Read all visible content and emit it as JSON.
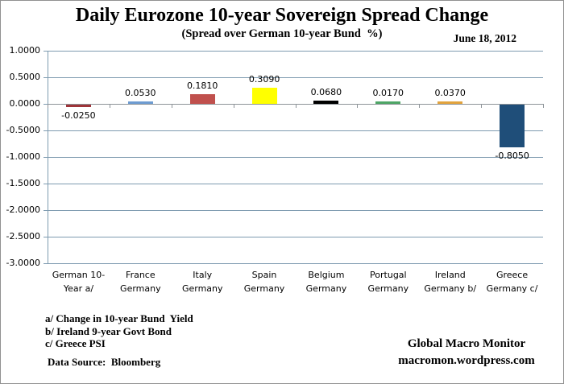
{
  "header": {
    "title": "Daily Eurozone 10-year Sovereign Spread Change",
    "subtitle": "(Spread over German 10-year Bund  %)",
    "date": "June 18, 2012"
  },
  "chart_data": {
    "type": "bar",
    "title": "Daily Eurozone 10-year Sovereign Spread Change",
    "subtitle": "(Spread over German 10-year Bund  %)",
    "annotation_date": "June 18, 2012",
    "categories": [
      "German 10-Year a/",
      "France Germany",
      "Italy Germany",
      "Spain Germany",
      "Belgium Germany",
      "Portugal Germany",
      "Ireland Germany b/",
      "Greece Germany c/"
    ],
    "category_label_lines": [
      [
        "German 10-",
        "Year a/"
      ],
      [
        "France",
        "Germany"
      ],
      [
        "Italy",
        "Germany"
      ],
      [
        "Spain",
        "Germany"
      ],
      [
        "Belgium",
        "Germany"
      ],
      [
        "Portugal",
        "Germany"
      ],
      [
        "Ireland",
        "Germany b/"
      ],
      [
        "Greece",
        "Germany c/"
      ]
    ],
    "values": [
      -0.025,
      0.053,
      0.181,
      0.309,
      0.068,
      0.017,
      0.037,
      -0.805
    ],
    "value_labels": [
      "-0.0250",
      "0.0530",
      "0.1810",
      "0.3090",
      "0.0680",
      "0.0170",
      "0.0370",
      "-0.8050"
    ],
    "bar_colors": [
      "#9E3439",
      "#6D9BD1",
      "#C0504D",
      "#FFFF00",
      "#000000",
      "#4EA566",
      "#E2A33D",
      "#1F4E79"
    ],
    "ylim": [
      -3.0,
      1.0
    ],
    "ytick_labels": [
      "1.0000",
      "0.5000",
      "0.0000",
      "-0.5000",
      "-1.0000",
      "-1.5000",
      "-2.0000",
      "-2.5000",
      "-3.0000"
    ],
    "grid": true,
    "legend": "none",
    "gridline_color": "#7E9BB0",
    "axis_color": "#8E9499",
    "xlabel": "",
    "ylabel": ""
  },
  "footnotes": {
    "a": "a/ Change in 10-year Bund  Yield",
    "b": "b/ Ireland 9-year Govt Bond",
    "c": "c/ Greece PSI",
    "data_source": "Data Source:  Bloomberg"
  },
  "branding": {
    "name": "Global Macro Monitor",
    "url": "macromon.wordpress.com"
  }
}
